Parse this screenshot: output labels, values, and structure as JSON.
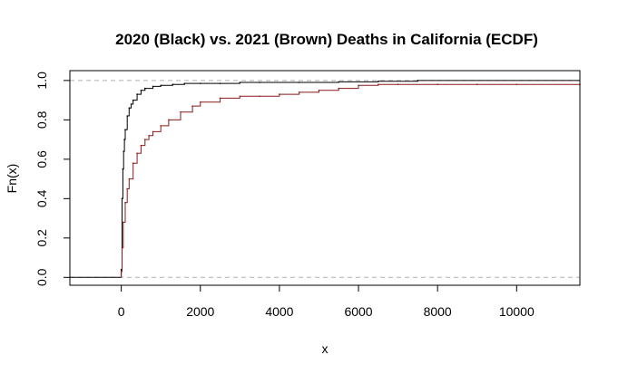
{
  "chart_data": {
    "type": "line",
    "title": "2020 (Black) vs. 2021 (Brown) Deaths in California (ECDF)",
    "xlabel": "x",
    "ylabel": "Fn(x)",
    "xlim": [
      -1300,
      11600
    ],
    "ylim": [
      -0.04,
      1.05
    ],
    "x_ticks": [
      0,
      2000,
      4000,
      6000,
      8000,
      10000
    ],
    "x_tick_labels": [
      "0",
      "2000",
      "4000",
      "6000",
      "8000",
      "10000"
    ],
    "y_ticks": [
      0.0,
      0.2,
      0.4,
      0.6,
      0.8,
      1.0
    ],
    "y_tick_labels": [
      "0.0",
      "0.2",
      "0.4",
      "0.6",
      "0.8",
      "1.0"
    ],
    "reference_lines": [
      0,
      1
    ],
    "series": [
      {
        "color": "#000000",
        "x": [
          0,
          20,
          40,
          60,
          80,
          100,
          150,
          200,
          250,
          300,
          400,
          500,
          600,
          800,
          1000,
          1300,
          1600,
          2000,
          2500,
          3000,
          3500,
          4500,
          5500,
          6500,
          7500
        ],
        "y": [
          0.04,
          0.4,
          0.55,
          0.64,
          0.7,
          0.75,
          0.82,
          0.86,
          0.88,
          0.9,
          0.93,
          0.95,
          0.96,
          0.97,
          0.975,
          0.98,
          0.985,
          0.985,
          0.985,
          0.99,
          0.99,
          0.99,
          0.993,
          0.996,
          1.0
        ]
      },
      {
        "color": "#8b1a1a",
        "x": [
          0,
          20,
          50,
          100,
          150,
          200,
          300,
          400,
          500,
          600,
          700,
          800,
          1000,
          1200,
          1500,
          1800,
          2000,
          2500,
          3000,
          3500,
          4000,
          4500,
          5000,
          5500,
          6000,
          6500,
          7000,
          8000,
          9000,
          10000,
          11600
        ],
        "y": [
          0.03,
          0.15,
          0.28,
          0.38,
          0.45,
          0.5,
          0.58,
          0.63,
          0.67,
          0.7,
          0.72,
          0.74,
          0.77,
          0.8,
          0.84,
          0.87,
          0.89,
          0.91,
          0.92,
          0.92,
          0.93,
          0.94,
          0.95,
          0.96,
          0.975,
          0.98,
          0.98,
          0.98,
          0.98,
          0.98,
          0.98
        ]
      }
    ]
  }
}
